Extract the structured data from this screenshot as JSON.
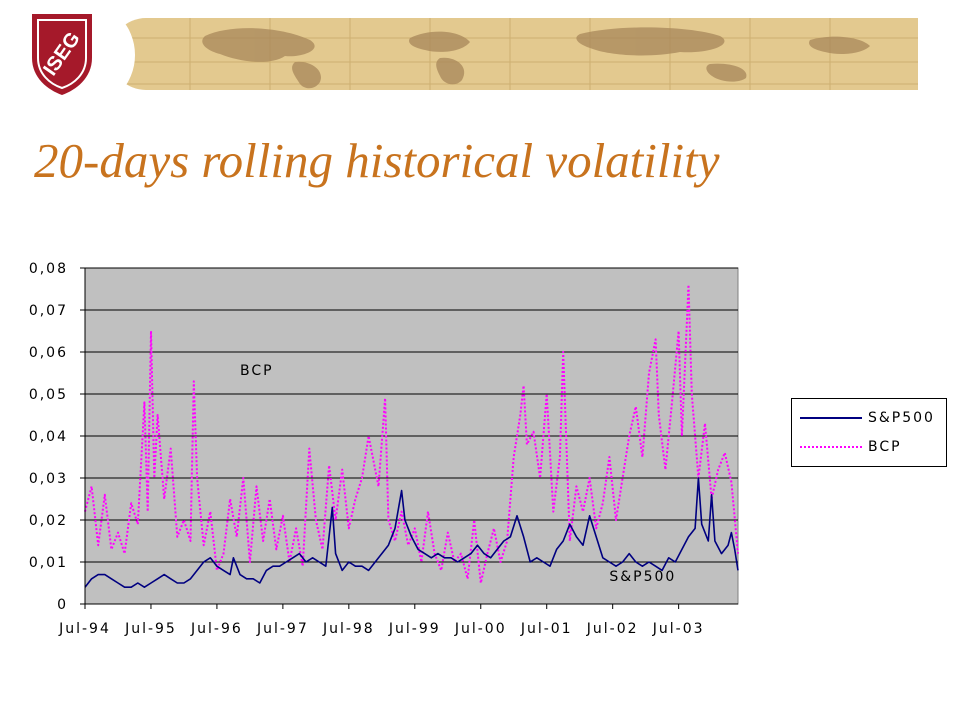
{
  "logo": {
    "text": "ISEG"
  },
  "title": "20-days rolling historical volatility",
  "chart_data": {
    "type": "line",
    "title": "",
    "xlabel": "",
    "ylabel": "",
    "x_tick_labels": [
      "Jul-94",
      "Jul-95",
      "Jul-96",
      "Jul-97",
      "Jul-98",
      "Jul-99",
      "Jul-00",
      "Jul-01",
      "Jul-02",
      "Jul-03"
    ],
    "y_tick_labels": [
      "0",
      "0,01",
      "0,02",
      "0,03",
      "0,04",
      "0,05",
      "0,06",
      "0,07",
      "0,08"
    ],
    "ylim": [
      0,
      0.08
    ],
    "xlim": [
      1994.5,
      2004.4
    ],
    "grid": "horizontal",
    "plot_background": "#c0c0c0",
    "legend_position": "right",
    "series": [
      {
        "name": "S&P500",
        "color": "#000080",
        "style": "solid",
        "points": [
          [
            1994.5,
            0.004
          ],
          [
            1994.6,
            0.006
          ],
          [
            1994.7,
            0.007
          ],
          [
            1994.8,
            0.007
          ],
          [
            1994.9,
            0.006
          ],
          [
            1995.0,
            0.005
          ],
          [
            1995.1,
            0.004
          ],
          [
            1995.2,
            0.004
          ],
          [
            1995.3,
            0.005
          ],
          [
            1995.4,
            0.004
          ],
          [
            1995.5,
            0.005
          ],
          [
            1995.6,
            0.006
          ],
          [
            1995.7,
            0.007
          ],
          [
            1995.8,
            0.006
          ],
          [
            1995.9,
            0.005
          ],
          [
            1996.0,
            0.005
          ],
          [
            1996.1,
            0.006
          ],
          [
            1996.2,
            0.008
          ],
          [
            1996.3,
            0.01
          ],
          [
            1996.4,
            0.011
          ],
          [
            1996.5,
            0.009
          ],
          [
            1996.6,
            0.008
          ],
          [
            1996.7,
            0.007
          ],
          [
            1996.75,
            0.011
          ],
          [
            1996.85,
            0.007
          ],
          [
            1996.95,
            0.006
          ],
          [
            1997.05,
            0.006
          ],
          [
            1997.15,
            0.005
          ],
          [
            1997.25,
            0.008
          ],
          [
            1997.35,
            0.009
          ],
          [
            1997.45,
            0.009
          ],
          [
            1997.55,
            0.01
          ],
          [
            1997.65,
            0.011
          ],
          [
            1997.75,
            0.012
          ],
          [
            1997.85,
            0.01
          ],
          [
            1997.95,
            0.011
          ],
          [
            1998.05,
            0.01
          ],
          [
            1998.15,
            0.009
          ],
          [
            1998.25,
            0.023
          ],
          [
            1998.3,
            0.012
          ],
          [
            1998.4,
            0.008
          ],
          [
            1998.5,
            0.01
          ],
          [
            1998.6,
            0.009
          ],
          [
            1998.7,
            0.009
          ],
          [
            1998.8,
            0.008
          ],
          [
            1998.9,
            0.01
          ],
          [
            1999.0,
            0.012
          ],
          [
            1999.1,
            0.014
          ],
          [
            1999.2,
            0.018
          ],
          [
            1999.3,
            0.027
          ],
          [
            1999.35,
            0.02
          ],
          [
            1999.45,
            0.016
          ],
          [
            1999.55,
            0.013
          ],
          [
            1999.65,
            0.012
          ],
          [
            1999.75,
            0.011
          ],
          [
            1999.85,
            0.012
          ],
          [
            1999.95,
            0.011
          ],
          [
            2000.05,
            0.011
          ],
          [
            2000.15,
            0.01
          ],
          [
            2000.25,
            0.011
          ],
          [
            2000.35,
            0.012
          ],
          [
            2000.45,
            0.014
          ],
          [
            2000.55,
            0.012
          ],
          [
            2000.65,
            0.011
          ],
          [
            2000.75,
            0.013
          ],
          [
            2000.85,
            0.015
          ],
          [
            2000.95,
            0.016
          ],
          [
            2001.05,
            0.021
          ],
          [
            2001.15,
            0.016
          ],
          [
            2001.25,
            0.01
          ],
          [
            2001.35,
            0.011
          ],
          [
            2001.45,
            0.01
          ],
          [
            2001.55,
            0.009
          ],
          [
            2001.65,
            0.013
          ],
          [
            2001.75,
            0.015
          ],
          [
            2001.85,
            0.019
          ],
          [
            2001.95,
            0.016
          ],
          [
            2002.05,
            0.014
          ],
          [
            2002.15,
            0.021
          ],
          [
            2002.25,
            0.016
          ],
          [
            2002.35,
            0.011
          ],
          [
            2002.45,
            0.01
          ],
          [
            2002.55,
            0.009
          ],
          [
            2002.65,
            0.01
          ],
          [
            2002.75,
            0.012
          ],
          [
            2002.85,
            0.01
          ],
          [
            2002.95,
            0.009
          ],
          [
            2003.05,
            0.01
          ],
          [
            2003.15,
            0.009
          ],
          [
            2003.25,
            0.008
          ],
          [
            2003.35,
            0.011
          ],
          [
            2003.45,
            0.01
          ],
          [
            2003.55,
            0.013
          ],
          [
            2003.65,
            0.016
          ],
          [
            2003.75,
            0.018
          ],
          [
            2003.8,
            0.03
          ],
          [
            2003.85,
            0.019
          ],
          [
            2003.95,
            0.015
          ],
          [
            2004.0,
            0.026
          ],
          [
            2004.05,
            0.015
          ],
          [
            2004.15,
            0.012
          ],
          [
            2004.25,
            0.014
          ],
          [
            2004.3,
            0.017
          ],
          [
            2004.35,
            0.013
          ],
          [
            2004.4,
            0.008
          ]
        ]
      },
      {
        "name": "BCP",
        "color": "#ff00ff",
        "style": "dotted",
        "points": [
          [
            1994.5,
            0.022
          ],
          [
            1994.6,
            0.028
          ],
          [
            1994.7,
            0.014
          ],
          [
            1994.8,
            0.026
          ],
          [
            1994.9,
            0.013
          ],
          [
            1995.0,
            0.017
          ],
          [
            1995.1,
            0.012
          ],
          [
            1995.2,
            0.024
          ],
          [
            1995.3,
            0.019
          ],
          [
            1995.4,
            0.048
          ],
          [
            1995.45,
            0.022
          ],
          [
            1995.5,
            0.065
          ],
          [
            1995.55,
            0.03
          ],
          [
            1995.6,
            0.045
          ],
          [
            1995.7,
            0.025
          ],
          [
            1995.8,
            0.037
          ],
          [
            1995.9,
            0.016
          ],
          [
            1996.0,
            0.02
          ],
          [
            1996.1,
            0.015
          ],
          [
            1996.15,
            0.053
          ],
          [
            1996.2,
            0.03
          ],
          [
            1996.3,
            0.014
          ],
          [
            1996.4,
            0.022
          ],
          [
            1996.5,
            0.008
          ],
          [
            1996.6,
            0.012
          ],
          [
            1996.7,
            0.025
          ],
          [
            1996.8,
            0.016
          ],
          [
            1996.9,
            0.03
          ],
          [
            1997.0,
            0.01
          ],
          [
            1997.1,
            0.028
          ],
          [
            1997.2,
            0.015
          ],
          [
            1997.3,
            0.025
          ],
          [
            1997.4,
            0.013
          ],
          [
            1997.5,
            0.021
          ],
          [
            1997.6,
            0.01
          ],
          [
            1997.7,
            0.018
          ],
          [
            1997.8,
            0.009
          ],
          [
            1997.9,
            0.037
          ],
          [
            1998.0,
            0.02
          ],
          [
            1998.1,
            0.013
          ],
          [
            1998.2,
            0.033
          ],
          [
            1998.3,
            0.02
          ],
          [
            1998.4,
            0.032
          ],
          [
            1998.5,
            0.018
          ],
          [
            1998.6,
            0.025
          ],
          [
            1998.7,
            0.03
          ],
          [
            1998.8,
            0.04
          ],
          [
            1998.85,
            0.036
          ],
          [
            1998.95,
            0.028
          ],
          [
            1999.05,
            0.049
          ],
          [
            1999.1,
            0.02
          ],
          [
            1999.2,
            0.015
          ],
          [
            1999.3,
            0.022
          ],
          [
            1999.4,
            0.014
          ],
          [
            1999.5,
            0.018
          ],
          [
            1999.6,
            0.01
          ],
          [
            1999.7,
            0.022
          ],
          [
            1999.8,
            0.012
          ],
          [
            1999.9,
            0.008
          ],
          [
            2000.0,
            0.017
          ],
          [
            2000.1,
            0.01
          ],
          [
            2000.2,
            0.012
          ],
          [
            2000.3,
            0.006
          ],
          [
            2000.4,
            0.02
          ],
          [
            2000.5,
            0.005
          ],
          [
            2000.6,
            0.012
          ],
          [
            2000.7,
            0.018
          ],
          [
            2000.8,
            0.01
          ],
          [
            2000.9,
            0.015
          ],
          [
            2001.0,
            0.035
          ],
          [
            2001.1,
            0.045
          ],
          [
            2001.15,
            0.052
          ],
          [
            2001.2,
            0.038
          ],
          [
            2001.3,
            0.041
          ],
          [
            2001.4,
            0.03
          ],
          [
            2001.5,
            0.05
          ],
          [
            2001.6,
            0.022
          ],
          [
            2001.7,
            0.035
          ],
          [
            2001.75,
            0.06
          ],
          [
            2001.85,
            0.015
          ],
          [
            2001.95,
            0.028
          ],
          [
            2002.05,
            0.022
          ],
          [
            2002.15,
            0.03
          ],
          [
            2002.25,
            0.018
          ],
          [
            2002.35,
            0.024
          ],
          [
            2002.45,
            0.035
          ],
          [
            2002.55,
            0.02
          ],
          [
            2002.65,
            0.03
          ],
          [
            2002.75,
            0.04
          ],
          [
            2002.85,
            0.047
          ],
          [
            2002.95,
            0.035
          ],
          [
            2003.05,
            0.055
          ],
          [
            2003.15,
            0.063
          ],
          [
            2003.2,
            0.045
          ],
          [
            2003.3,
            0.032
          ],
          [
            2003.4,
            0.048
          ],
          [
            2003.5,
            0.065
          ],
          [
            2003.55,
            0.04
          ],
          [
            2003.65,
            0.076
          ],
          [
            2003.7,
            0.05
          ],
          [
            2003.8,
            0.03
          ],
          [
            2003.9,
            0.043
          ],
          [
            2004.0,
            0.025
          ],
          [
            2004.1,
            0.032
          ],
          [
            2004.2,
            0.036
          ],
          [
            2004.3,
            0.029
          ],
          [
            2004.4,
            0.012
          ]
        ]
      }
    ],
    "annotations": [
      {
        "text": "BCP",
        "x": 1996.85,
        "y": 0.0545
      },
      {
        "text": "S&P500",
        "x": 2002.45,
        "y": 0.0055
      }
    ]
  }
}
